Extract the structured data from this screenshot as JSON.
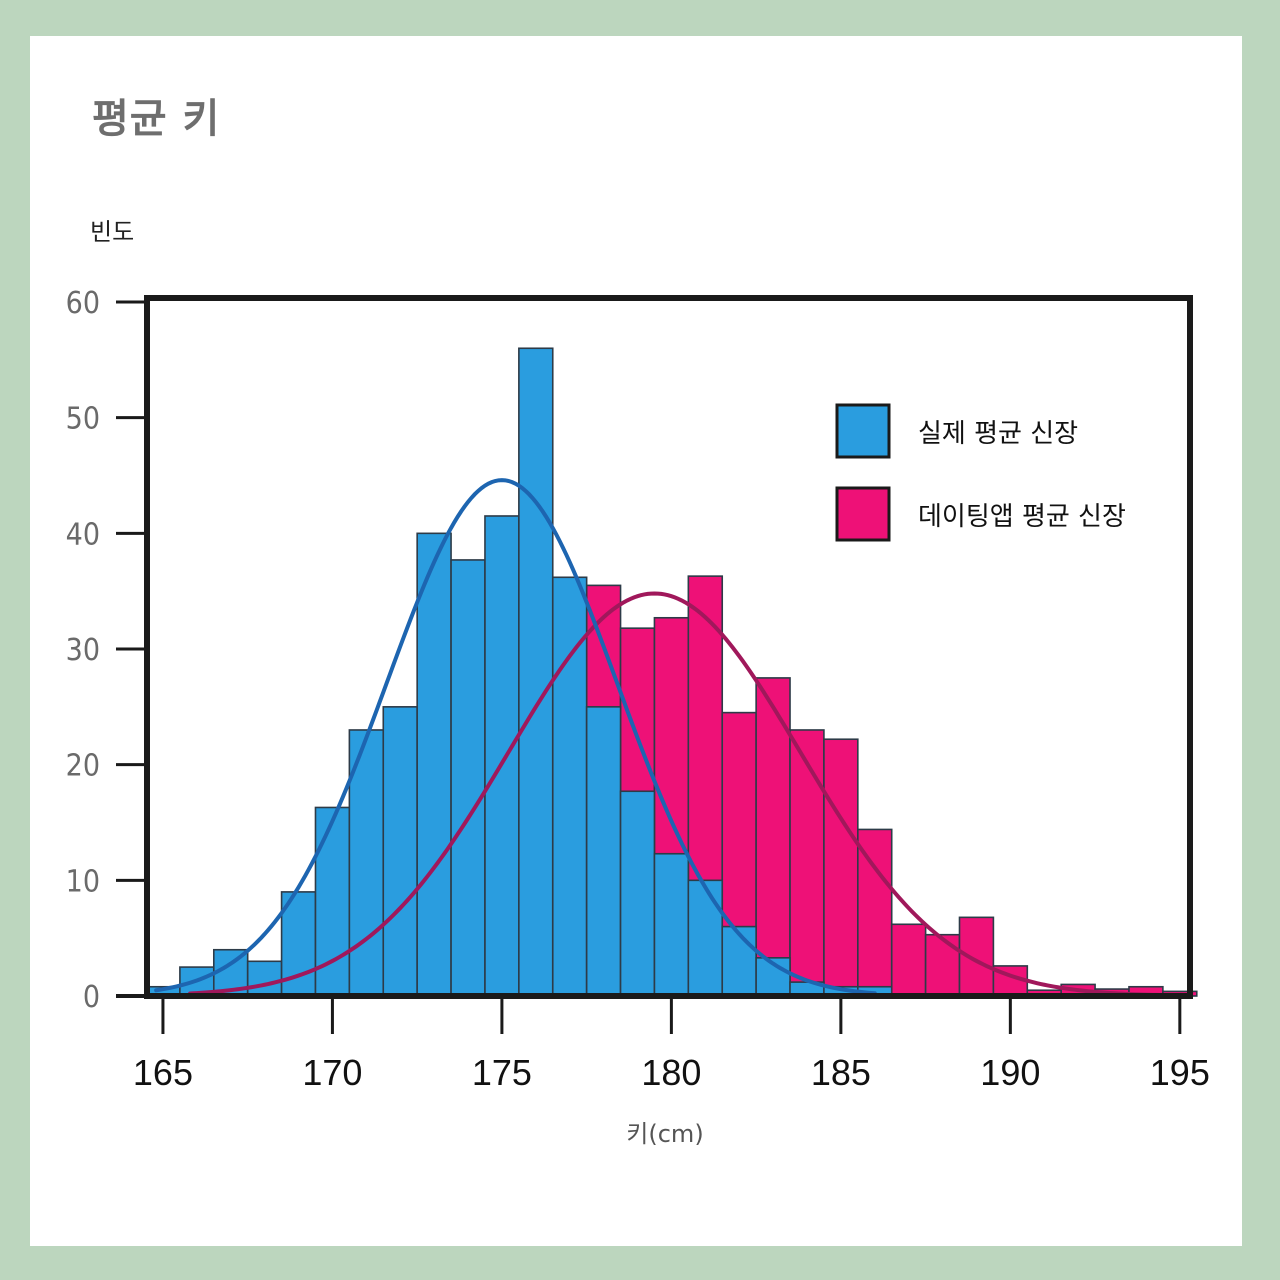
{
  "title": "평균 키",
  "colors": {
    "actual_bar": "#2a9ddf",
    "actual_curve": "#1d65b0",
    "app_bar": "#ee1177",
    "app_curve": "#a0185b",
    "frame": "#1a1a1a",
    "background": "#bcd6be"
  },
  "chart_data": {
    "type": "bar",
    "title": "평균 키",
    "xlabel": "키(cm)",
    "ylabel": "빈도",
    "xlim": [
      164.5,
      195.3
    ],
    "ylim": [
      0,
      60
    ],
    "xticks": [
      165,
      170,
      175,
      180,
      185,
      190,
      195
    ],
    "yticks": [
      0,
      10,
      20,
      30,
      40,
      50,
      60
    ],
    "bin_width": 1,
    "legend_position": "top-right",
    "series": [
      {
        "name": "실제 평균 신장",
        "color": "#2a9ddf",
        "bin_starts": [
          164.5,
          165.5,
          166.5,
          167.5,
          168.5,
          169.5,
          170.5,
          171.5,
          172.5,
          173.5,
          174.5,
          175.5,
          176.5,
          177.5,
          178.5,
          179.5,
          180.5,
          181.5,
          182.5,
          183.5,
          184.5,
          185.5
        ],
        "values": [
          0.8,
          2.5,
          4,
          3,
          9,
          16.3,
          23,
          25,
          40,
          37.7,
          41.5,
          56,
          36.2,
          25,
          17.7,
          12.3,
          10,
          6,
          3.3,
          1.2,
          0.8,
          0.8
        ],
        "curve": {
          "mean": 175,
          "peak": 44.6,
          "sd": 3.4
        }
      },
      {
        "name": "데이팅앱 평균 신장",
        "color": "#ee1177",
        "bin_starts": [
          164.5,
          165.5,
          166.5,
          167.5,
          168.5,
          169.5,
          170.5,
          171.5,
          172.5,
          173.5,
          174.5,
          175.5,
          176.5,
          177.5,
          178.5,
          179.5,
          180.5,
          181.5,
          182.5,
          183.5,
          184.5,
          185.5,
          186.5,
          187.5,
          188.5,
          189.5,
          190.5,
          191.5,
          192.5,
          193.5,
          194.5
        ],
        "values": [
          0,
          0,
          0,
          0,
          0,
          0,
          0,
          0,
          0,
          0,
          0,
          0,
          0,
          35.5,
          31.8,
          32.7,
          36.3,
          24.5,
          27.5,
          23,
          22.2,
          14.4,
          6.2,
          5.3,
          6.8,
          2.6,
          0.5,
          1,
          0.6,
          0.8,
          0.4
        ],
        "curve": {
          "mean": 179.5,
          "peak": 34.8,
          "sd": 4.3
        }
      }
    ]
  }
}
